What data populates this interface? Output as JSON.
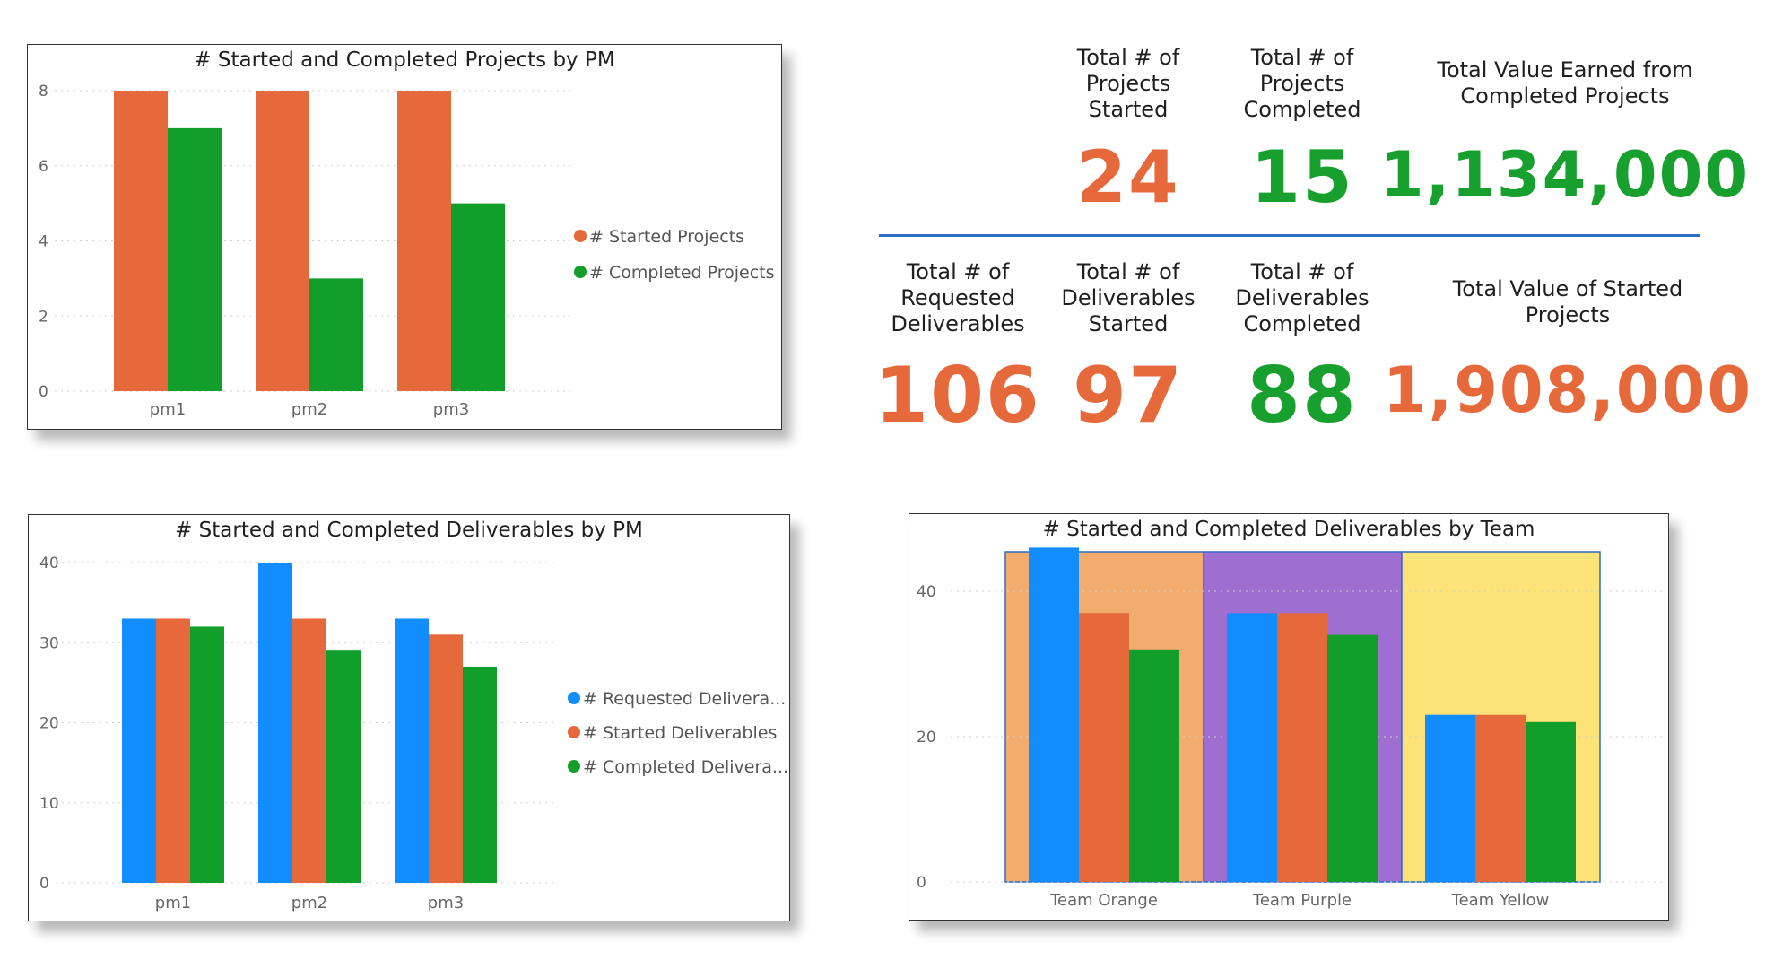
{
  "colors": {
    "orange": "#E5693A",
    "green": "#129E2A",
    "blue": "#118DFF",
    "kpi_orange": "#E5693A",
    "kpi_green": "#18A02E",
    "divider": "#2B6CC4",
    "band_orange": "#F4AB6E",
    "band_purple": "#9E6ED1",
    "band_yellow": "#FBE377"
  },
  "kpis": [
    {
      "label_lines": [
        "Total # of",
        "Projects",
        "Started"
      ],
      "value": "24",
      "color": "orange"
    },
    {
      "label_lines": [
        "Total # of",
        "Projects",
        "Completed"
      ],
      "value": "15",
      "color": "green"
    },
    {
      "label_lines": [
        "Total Value Earned from",
        "Completed Projects"
      ],
      "value": "1,134,000",
      "color": "green"
    },
    {
      "label_lines": [
        "Total # of",
        "Requested",
        "Deliverables"
      ],
      "value": "106",
      "color": "orange"
    },
    {
      "label_lines": [
        "Total # of",
        "Deliverables",
        "Started"
      ],
      "value": "97",
      "color": "orange"
    },
    {
      "label_lines": [
        "Total # of",
        "Deliverables",
        "Completed"
      ],
      "value": "88",
      "color": "green"
    },
    {
      "label_lines": [
        "Total Value of Started",
        "Projects"
      ],
      "value": "1,908,000",
      "color": "orange"
    }
  ],
  "chart_data": [
    {
      "type": "bar",
      "title": "# Started and Completed Projects by PM",
      "categories": [
        "pm1",
        "pm2",
        "pm3"
      ],
      "series": [
        {
          "name": "# Started Projects",
          "color": "orange",
          "values": [
            8,
            8,
            8
          ]
        },
        {
          "name": "# Completed Projects",
          "color": "green",
          "values": [
            7,
            3,
            5
          ]
        }
      ],
      "ylim": [
        0,
        8
      ],
      "yticks": [
        0,
        2,
        4,
        6,
        8
      ],
      "grid": true,
      "legend": "right"
    },
    {
      "type": "bar",
      "title": "# Started and Completed Deliverables by PM",
      "categories": [
        "pm1",
        "pm2",
        "pm3"
      ],
      "series": [
        {
          "name": "# Requested Delivera...",
          "color": "blue",
          "values": [
            33,
            40,
            33
          ]
        },
        {
          "name": "# Started Deliverables",
          "color": "orange",
          "values": [
            33,
            33,
            31
          ]
        },
        {
          "name": "# Completed Delivera...",
          "color": "green",
          "values": [
            32,
            29,
            27
          ]
        }
      ],
      "ylim": [
        0,
        40
      ],
      "yticks": [
        0,
        10,
        20,
        30,
        40
      ],
      "grid": true,
      "legend": "right"
    },
    {
      "type": "bar",
      "title": "# Started and Completed Deliverables by Team",
      "categories": [
        "Team Orange",
        "Team Purple",
        "Team Yellow"
      ],
      "category_colors": [
        "band_orange",
        "band_purple",
        "band_yellow"
      ],
      "series": [
        {
          "color": "blue",
          "values": [
            46,
            37,
            23
          ]
        },
        {
          "color": "orange",
          "values": [
            37,
            37,
            23
          ]
        },
        {
          "color": "green",
          "values": [
            32,
            34,
            22
          ]
        }
      ],
      "ylim": [
        0,
        50
      ],
      "yticks": [
        0,
        20,
        40
      ],
      "grid": true,
      "legend": "none"
    }
  ]
}
